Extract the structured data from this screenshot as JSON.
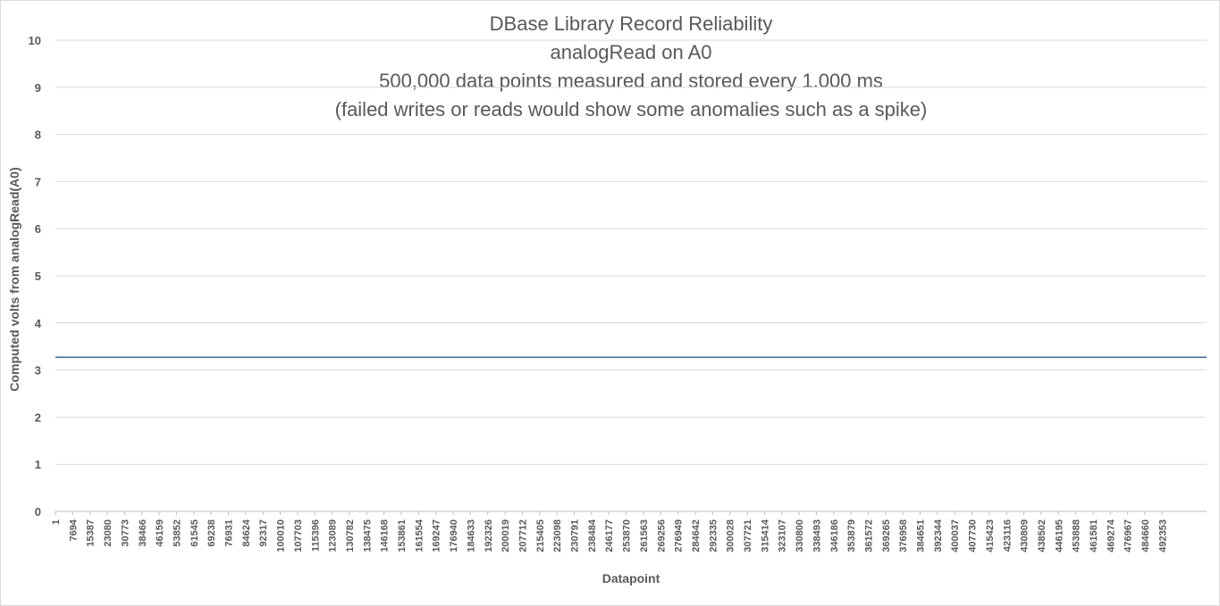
{
  "chart_data": {
    "type": "line",
    "title_lines": [
      "DBase Library  Record Reliability",
      "analogRead on A0",
      "500,000 data points measured and stored every 1.000 ms",
      "(failed writes or reads would show some anomalies such as a spike)"
    ],
    "xlabel": "Datapoint",
    "ylabel": "Computed volts from analogRead(A0)",
    "ylim": [
      0,
      10
    ],
    "yticks": [
      "0",
      "1",
      "2",
      "3",
      "4",
      "5",
      "6",
      "7",
      "8",
      "9",
      "10"
    ],
    "xlim": [
      1,
      500000
    ],
    "xticks": [
      "1",
      "7694",
      "15387",
      "23080",
      "30773",
      "38466",
      "46159",
      "53852",
      "61545",
      "69238",
      "76931",
      "84624",
      "92317",
      "100010",
      "107703",
      "115396",
      "123089",
      "130782",
      "138475",
      "146168",
      "153861",
      "161554",
      "169247",
      "176940",
      "184633",
      "192326",
      "200019",
      "207712",
      "215405",
      "223098",
      "230791",
      "238484",
      "246177",
      "253870",
      "261563",
      "269256",
      "276949",
      "284642",
      "292335",
      "300028",
      "307721",
      "315414",
      "323107",
      "330800",
      "338493",
      "346186",
      "353879",
      "361572",
      "369265",
      "376958",
      "384651",
      "392344",
      "400037",
      "407730",
      "415423",
      "423116",
      "430809",
      "438502",
      "446195",
      "453888",
      "461581",
      "469274",
      "476967",
      "484660",
      "492353"
    ],
    "grid": true,
    "legend": "none",
    "series": [
      {
        "color": "#4a6f96",
        "x": [
          1,
          500000
        ],
        "values": [
          3.27,
          3.27
        ]
      }
    ]
  }
}
